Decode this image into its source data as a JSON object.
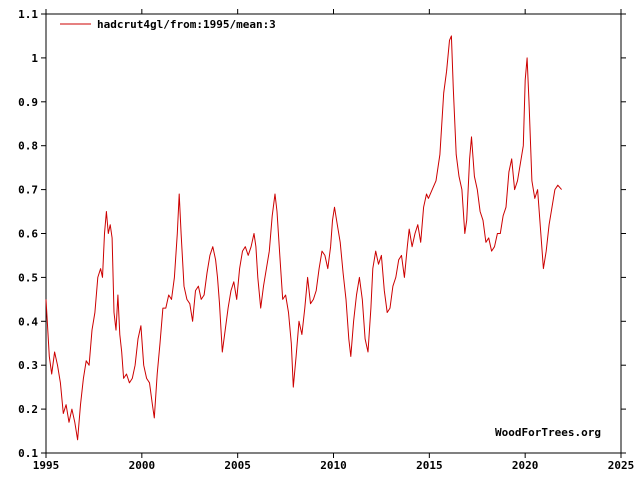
{
  "chart_data": {
    "type": "line",
    "title": "",
    "xlabel": "",
    "ylabel": "",
    "xlim": [
      1995,
      2025
    ],
    "ylim": [
      0.1,
      1.1
    ],
    "x_ticks": [
      "1995",
      "2000",
      "2005",
      "2010",
      "2015",
      "2020",
      "2025"
    ],
    "y_ticks": [
      "0.1",
      "0.2",
      "0.3",
      "0.4",
      "0.5",
      "0.6",
      "0.7",
      "0.8",
      "0.9",
      "1",
      "1.1"
    ],
    "grid": false,
    "legend_position": "top-left",
    "credit": "WoodForTrees.org",
    "line_color": "#cc0000",
    "series": [
      {
        "name": "hadcrut4gl/from:1995/mean:3",
        "points": [
          [
            1995.0,
            0.45
          ],
          [
            1995.17,
            0.32
          ],
          [
            1995.3,
            0.28
          ],
          [
            1995.45,
            0.33
          ],
          [
            1995.6,
            0.3
          ],
          [
            1995.75,
            0.26
          ],
          [
            1995.9,
            0.19
          ],
          [
            1996.05,
            0.21
          ],
          [
            1996.2,
            0.17
          ],
          [
            1996.35,
            0.2
          ],
          [
            1996.5,
            0.17
          ],
          [
            1996.65,
            0.13
          ],
          [
            1996.8,
            0.21
          ],
          [
            1996.95,
            0.27
          ],
          [
            1997.1,
            0.31
          ],
          [
            1997.25,
            0.3
          ],
          [
            1997.4,
            0.38
          ],
          [
            1997.55,
            0.42
          ],
          [
            1997.7,
            0.5
          ],
          [
            1997.85,
            0.52
          ],
          [
            1997.95,
            0.5
          ],
          [
            1998.05,
            0.6
          ],
          [
            1998.15,
            0.65
          ],
          [
            1998.25,
            0.6
          ],
          [
            1998.35,
            0.62
          ],
          [
            1998.45,
            0.59
          ],
          [
            1998.55,
            0.42
          ],
          [
            1998.65,
            0.38
          ],
          [
            1998.75,
            0.46
          ],
          [
            1998.85,
            0.37
          ],
          [
            1998.95,
            0.33
          ],
          [
            1999.05,
            0.27
          ],
          [
            1999.2,
            0.28
          ],
          [
            1999.35,
            0.26
          ],
          [
            1999.5,
            0.27
          ],
          [
            1999.65,
            0.3
          ],
          [
            1999.8,
            0.36
          ],
          [
            1999.95,
            0.39
          ],
          [
            2000.1,
            0.3
          ],
          [
            2000.25,
            0.27
          ],
          [
            2000.4,
            0.26
          ],
          [
            2000.55,
            0.21
          ],
          [
            2000.65,
            0.18
          ],
          [
            2000.8,
            0.28
          ],
          [
            2000.95,
            0.35
          ],
          [
            2001.1,
            0.43
          ],
          [
            2001.25,
            0.43
          ],
          [
            2001.4,
            0.46
          ],
          [
            2001.55,
            0.45
          ],
          [
            2001.7,
            0.5
          ],
          [
            2001.85,
            0.6
          ],
          [
            2001.95,
            0.69
          ],
          [
            2002.05,
            0.6
          ],
          [
            2002.2,
            0.48
          ],
          [
            2002.35,
            0.45
          ],
          [
            2002.5,
            0.44
          ],
          [
            2002.65,
            0.4
          ],
          [
            2002.8,
            0.47
          ],
          [
            2002.95,
            0.48
          ],
          [
            2003.1,
            0.45
          ],
          [
            2003.25,
            0.46
          ],
          [
            2003.4,
            0.51
          ],
          [
            2003.55,
            0.55
          ],
          [
            2003.7,
            0.57
          ],
          [
            2003.85,
            0.54
          ],
          [
            2003.95,
            0.5
          ],
          [
            2004.05,
            0.44
          ],
          [
            2004.2,
            0.33
          ],
          [
            2004.35,
            0.38
          ],
          [
            2004.5,
            0.43
          ],
          [
            2004.65,
            0.47
          ],
          [
            2004.8,
            0.49
          ],
          [
            2004.95,
            0.45
          ],
          [
            2005.1,
            0.52
          ],
          [
            2005.25,
            0.56
          ],
          [
            2005.4,
            0.57
          ],
          [
            2005.55,
            0.55
          ],
          [
            2005.7,
            0.57
          ],
          [
            2005.85,
            0.6
          ],
          [
            2005.95,
            0.57
          ],
          [
            2006.05,
            0.5
          ],
          [
            2006.2,
            0.43
          ],
          [
            2006.35,
            0.48
          ],
          [
            2006.5,
            0.52
          ],
          [
            2006.65,
            0.56
          ],
          [
            2006.8,
            0.64
          ],
          [
            2006.95,
            0.69
          ],
          [
            2007.05,
            0.65
          ],
          [
            2007.2,
            0.55
          ],
          [
            2007.35,
            0.45
          ],
          [
            2007.5,
            0.46
          ],
          [
            2007.65,
            0.42
          ],
          [
            2007.8,
            0.35
          ],
          [
            2007.9,
            0.25
          ],
          [
            2008.05,
            0.32
          ],
          [
            2008.2,
            0.4
          ],
          [
            2008.35,
            0.37
          ],
          [
            2008.5,
            0.43
          ],
          [
            2008.65,
            0.5
          ],
          [
            2008.8,
            0.44
          ],
          [
            2008.95,
            0.45
          ],
          [
            2009.1,
            0.47
          ],
          [
            2009.25,
            0.52
          ],
          [
            2009.4,
            0.56
          ],
          [
            2009.55,
            0.55
          ],
          [
            2009.7,
            0.52
          ],
          [
            2009.85,
            0.57
          ],
          [
            2009.95,
            0.63
          ],
          [
            2010.05,
            0.66
          ],
          [
            2010.2,
            0.62
          ],
          [
            2010.35,
            0.58
          ],
          [
            2010.5,
            0.51
          ],
          [
            2010.65,
            0.45
          ],
          [
            2010.8,
            0.36
          ],
          [
            2010.9,
            0.32
          ],
          [
            2011.05,
            0.4
          ],
          [
            2011.2,
            0.46
          ],
          [
            2011.35,
            0.5
          ],
          [
            2011.5,
            0.45
          ],
          [
            2011.65,
            0.36
          ],
          [
            2011.8,
            0.33
          ],
          [
            2011.95,
            0.43
          ],
          [
            2012.05,
            0.52
          ],
          [
            2012.2,
            0.56
          ],
          [
            2012.35,
            0.53
          ],
          [
            2012.5,
            0.55
          ],
          [
            2012.65,
            0.47
          ],
          [
            2012.8,
            0.42
          ],
          [
            2012.95,
            0.43
          ],
          [
            2013.1,
            0.48
          ],
          [
            2013.25,
            0.5
          ],
          [
            2013.4,
            0.54
          ],
          [
            2013.55,
            0.55
          ],
          [
            2013.7,
            0.5
          ],
          [
            2013.85,
            0.57
          ],
          [
            2013.95,
            0.61
          ],
          [
            2014.1,
            0.57
          ],
          [
            2014.25,
            0.6
          ],
          [
            2014.4,
            0.62
          ],
          [
            2014.55,
            0.58
          ],
          [
            2014.7,
            0.66
          ],
          [
            2014.85,
            0.69
          ],
          [
            2014.95,
            0.68
          ],
          [
            2015.15,
            0.7
          ],
          [
            2015.35,
            0.72
          ],
          [
            2015.55,
            0.78
          ],
          [
            2015.75,
            0.92
          ],
          [
            2015.9,
            0.97
          ],
          [
            2016.05,
            1.04
          ],
          [
            2016.15,
            1.05
          ],
          [
            2016.25,
            0.93
          ],
          [
            2016.4,
            0.78
          ],
          [
            2016.55,
            0.73
          ],
          [
            2016.7,
            0.7
          ],
          [
            2016.85,
            0.6
          ],
          [
            2016.95,
            0.63
          ],
          [
            2017.1,
            0.77
          ],
          [
            2017.2,
            0.82
          ],
          [
            2017.35,
            0.73
          ],
          [
            2017.5,
            0.7
          ],
          [
            2017.65,
            0.65
          ],
          [
            2017.8,
            0.63
          ],
          [
            2017.95,
            0.58
          ],
          [
            2018.1,
            0.59
          ],
          [
            2018.25,
            0.56
          ],
          [
            2018.4,
            0.57
          ],
          [
            2018.55,
            0.6
          ],
          [
            2018.7,
            0.6
          ],
          [
            2018.85,
            0.64
          ],
          [
            2019.0,
            0.66
          ],
          [
            2019.15,
            0.74
          ],
          [
            2019.3,
            0.77
          ],
          [
            2019.45,
            0.7
          ],
          [
            2019.6,
            0.72
          ],
          [
            2019.75,
            0.76
          ],
          [
            2019.9,
            0.8
          ],
          [
            2020.0,
            0.95
          ],
          [
            2020.1,
            1.0
          ],
          [
            2020.2,
            0.9
          ],
          [
            2020.35,
            0.72
          ],
          [
            2020.5,
            0.68
          ],
          [
            2020.65,
            0.7
          ],
          [
            2020.8,
            0.61
          ],
          [
            2020.95,
            0.52
          ],
          [
            2021.1,
            0.56
          ],
          [
            2021.25,
            0.62
          ],
          [
            2021.4,
            0.66
          ],
          [
            2021.55,
            0.7
          ],
          [
            2021.7,
            0.71
          ],
          [
            2021.9,
            0.7
          ]
        ]
      }
    ]
  }
}
